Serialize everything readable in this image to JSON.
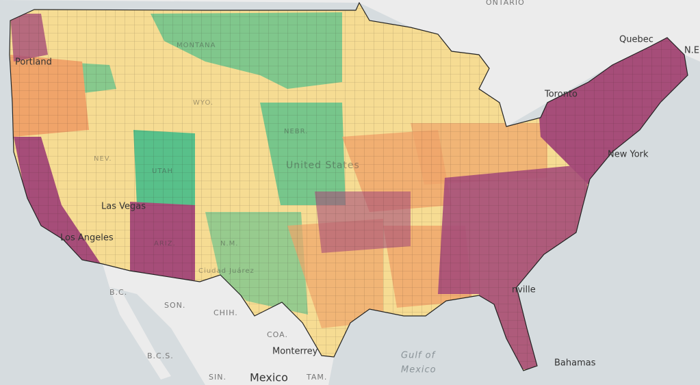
{
  "map": {
    "places": [
      "ONTARIO",
      "Quebec",
      "N.E",
      "Toronto",
      "New York",
      "Portland",
      "Las Vegas",
      "Los Angeles",
      "B.C.",
      "SON.",
      "CHIH.",
      "COA.",
      "B.C.S.",
      "Monterrey",
      "SIN.",
      "Mexico",
      "TAM.",
      "Gulf of",
      "Mexico",
      "Bahamas",
      "Ciudad Juárez",
      "United States",
      "nville",
      "MONTANA",
      "UTAH",
      "ARIZ.",
      "N.M.",
      "NEBR.",
      "WYO.",
      "NEV."
    ]
  }
}
